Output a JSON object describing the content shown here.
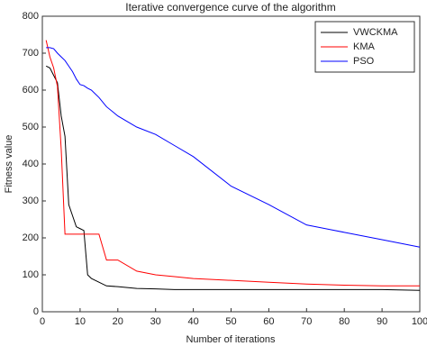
{
  "chart_data": {
    "type": "line",
    "title": "Iterative convergence curve of the algorithm",
    "x_label": "Number of iterations",
    "y_label": "Fitness value",
    "x": [
      1,
      2,
      3,
      4,
      5,
      6,
      7,
      8,
      9,
      10,
      11,
      12,
      13,
      15,
      17,
      20,
      25,
      30,
      35,
      40,
      50,
      60,
      70,
      80,
      90,
      100
    ],
    "series": [
      {
        "name": "VWCKMA",
        "color": "#000000",
        "values": [
          665,
          660,
          640,
          620,
          530,
          475,
          290,
          260,
          230,
          225,
          220,
          100,
          90,
          80,
          70,
          68,
          63,
          62,
          60,
          60,
          60,
          60,
          60,
          60,
          60,
          58
        ]
      },
      {
        "name": "KMA",
        "color": "#ff0000",
        "values": [
          735,
          690,
          660,
          610,
          440,
          210,
          210,
          210,
          210,
          210,
          210,
          210,
          210,
          210,
          140,
          140,
          110,
          100,
          95,
          90,
          85,
          80,
          75,
          72,
          70,
          70
        ]
      },
      {
        "name": "PSO",
        "color": "#0000ff",
        "values": [
          715,
          715,
          712,
          700,
          690,
          680,
          665,
          650,
          630,
          615,
          612,
          605,
          600,
          580,
          555,
          530,
          500,
          480,
          450,
          420,
          340,
          290,
          235,
          215,
          195,
          175
        ]
      }
    ],
    "xlim": [
      0,
      100
    ],
    "ylim": [
      0,
      800
    ],
    "xticks": [
      0,
      10,
      20,
      30,
      40,
      50,
      60,
      70,
      80,
      90,
      100
    ],
    "yticks": [
      0,
      100,
      200,
      300,
      400,
      500,
      600,
      700,
      800
    ],
    "legend": "top-right"
  }
}
